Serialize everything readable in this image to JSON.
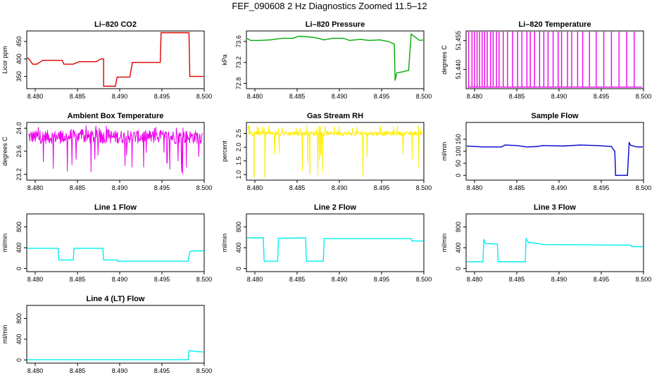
{
  "main_title": "FEF_090608  2 Hz Diagnostics Zoomed 11.5–12",
  "chart_data": [
    {
      "type": "line",
      "title": "Li–820 CO2",
      "ylabel": "Licor ppm",
      "color": "#dd0000",
      "xlim": [
        8.479,
        8.5
      ],
      "ylim": [
        315,
        480
      ],
      "x_ticks": [
        "8.480",
        "8.485",
        "8.490",
        "8.495",
        "8.500"
      ],
      "y_ticks": [
        "350",
        "400",
        "450"
      ],
      "series": [
        {
          "x": [
            8.479,
            8.4792,
            8.4797,
            8.4802,
            8.4809,
            8.4832,
            8.4834,
            8.4845,
            8.4852,
            8.4872,
            8.4878,
            8.4881,
            8.4881,
            8.4895,
            8.4897,
            8.4905,
            8.4912,
            8.4915,
            8.4925,
            8.4932,
            8.4934,
            8.4948,
            8.4949,
            8.4982,
            8.4983,
            8.4986,
            8.5
          ],
          "values": [
            402,
            402,
            385,
            385,
            396,
            396,
            385,
            385,
            392,
            392,
            400,
            400,
            322,
            322,
            348,
            348,
            348,
            390,
            390,
            390,
            390,
            390,
            475,
            475,
            350,
            350,
            350
          ]
        }
      ]
    },
    {
      "type": "line",
      "title": "Li–820 Pressure",
      "ylabel": "kPa",
      "color": "#00aa00",
      "xlim": [
        8.479,
        8.5
      ],
      "ylim": [
        72.7,
        73.8
      ],
      "x_ticks": [
        "8.480",
        "8.485",
        "8.490",
        "8.495",
        "8.500"
      ],
      "y_ticks": [
        "72.8",
        "73.2",
        "73.6"
      ],
      "series": [
        {
          "x": [
            8.479,
            8.4795,
            8.4805,
            8.4818,
            8.4832,
            8.4845,
            8.4852,
            8.4868,
            8.4875,
            8.4882,
            8.4892,
            8.4905,
            8.4912,
            8.4925,
            8.4935,
            8.4948,
            8.4958,
            8.4965,
            8.4966,
            8.4968,
            8.4975,
            8.4982,
            8.4985,
            8.4995,
            8.5
          ],
          "values": [
            73.66,
            73.62,
            73.62,
            73.63,
            73.66,
            73.66,
            73.7,
            73.68,
            73.66,
            73.63,
            73.66,
            73.66,
            73.62,
            73.64,
            73.62,
            73.63,
            73.6,
            73.55,
            72.86,
            73.0,
            73.02,
            73.05,
            73.74,
            73.62,
            73.63
          ]
        }
      ]
    },
    {
      "type": "line",
      "title": "Li–820 Temperature",
      "ylabel": "degrees C",
      "color": "#ee00ee",
      "xlim": [
        8.479,
        8.5
      ],
      "ylim": [
        51.43,
        51.46
      ],
      "x_ticks": [
        "8.480",
        "8.485",
        "8.490",
        "8.495",
        "8.500"
      ],
      "y_ticks": [
        "51.440",
        "51.455"
      ],
      "baseline": 51.4308,
      "spike_top": 51.4612,
      "spikes": [
        8.4793,
        8.4797,
        8.48,
        8.4803,
        8.4806,
        8.4809,
        8.4812,
        8.4815,
        8.4819,
        8.4822,
        8.4826,
        8.4829,
        8.4834,
        8.4839,
        8.4845,
        8.4851,
        8.4856,
        8.4862,
        8.4866,
        8.4871,
        8.4877,
        8.4882,
        8.4887,
        8.4893,
        8.4899,
        8.4903,
        8.491,
        8.4915,
        8.4922,
        8.4928,
        8.4936,
        8.4944,
        8.4953,
        8.4962,
        8.4971,
        8.498,
        8.4989
      ]
    },
    {
      "type": "line",
      "title": "Ambient Box Temperature",
      "ylabel": "degrees C",
      "color": "#ee00ee",
      "xlim": [
        8.479,
        8.5
      ],
      "ylim": [
        23.1,
        24.1
      ],
      "x_ticks": [
        "8.480",
        "8.485",
        "8.490",
        "8.495",
        "8.500"
      ],
      "y_ticks": [
        "23.2",
        "23.6",
        "24.0"
      ],
      "noise": {
        "center": 23.85,
        "amplitude": 0.12,
        "spike_low": 23.2,
        "spike_high": 24.05
      }
    },
    {
      "type": "line",
      "title": "Gas Stream RH",
      "ylabel": "percent",
      "color": "#ffee00",
      "xlim": [
        8.479,
        8.5
      ],
      "ylim": [
        0.8,
        2.9
      ],
      "x_ticks": [
        "8.480",
        "8.485",
        "8.490",
        "8.495",
        "8.500"
      ],
      "y_ticks": [
        "1.0",
        "1.5",
        "2.0",
        "2.5"
      ],
      "noise": {
        "center": 2.5,
        "amplitude": 0.08,
        "spike_low": 0.9,
        "spike_high": 2.8
      },
      "dips": [
        {
          "x": 8.4799,
          "value": 0.9
        },
        {
          "x": 8.4812,
          "value": 0.9
        },
        {
          "x": 8.4865,
          "value": 1.0
        },
        {
          "x": 8.4878,
          "value": 1.7
        }
      ]
    },
    {
      "type": "line",
      "title": "Sample Flow",
      "ylabel": "ml/min",
      "color": "#0000cc",
      "xlim": [
        8.479,
        8.5
      ],
      "ylim": [
        -20,
        220
      ],
      "x_ticks": [
        "8.480",
        "8.485",
        "8.490",
        "8.495",
        "8.500"
      ],
      "y_ticks": [
        "0",
        "50",
        "100",
        "150"
      ],
      "series": [
        {
          "x": [
            8.479,
            8.481,
            8.4832,
            8.4836,
            8.485,
            8.4862,
            8.4875,
            8.488,
            8.4905,
            8.4925,
            8.4945,
            8.4962,
            8.4966,
            8.4967,
            8.4978,
            8.4981,
            8.4983,
            8.4985,
            8.4992,
            8.5
          ],
          "values": [
            122,
            118,
            118,
            126,
            124,
            118,
            120,
            124,
            122,
            126,
            124,
            120,
            100,
            0,
            0,
            0,
            135,
            125,
            118,
            118
          ]
        }
      ]
    },
    {
      "type": "line",
      "title": "Line 1 Flow",
      "ylabel": "ml/min",
      "color": "#00eeee",
      "xlim": [
        8.479,
        8.5
      ],
      "ylim": [
        -60,
        1050
      ],
      "x_ticks": [
        "8.480",
        "8.485",
        "8.490",
        "8.495",
        "8.500"
      ],
      "y_ticks": [
        "0",
        "400",
        "800"
      ],
      "series": [
        {
          "x": [
            8.479,
            8.4827,
            8.4828,
            8.4845,
            8.4846,
            8.488,
            8.4881,
            8.4897,
            8.4898,
            8.4981,
            8.4983,
            8.4985,
            8.5
          ],
          "values": [
            390,
            390,
            165,
            165,
            390,
            390,
            165,
            165,
            140,
            140,
            320,
            340,
            340
          ]
        }
      ]
    },
    {
      "type": "line",
      "title": "Line 2 Flow",
      "ylabel": "ml/min",
      "color": "#00eeee",
      "xlim": [
        8.479,
        8.5
      ],
      "ylim": [
        -60,
        1050
      ],
      "x_ticks": [
        "8.480",
        "8.485",
        "8.490",
        "8.495",
        "8.500"
      ],
      "y_ticks": [
        "0",
        "400",
        "800"
      ],
      "series": [
        {
          "x": [
            8.479,
            8.481,
            8.4811,
            8.4827,
            8.4828,
            8.486,
            8.4861,
            8.4881,
            8.4882,
            8.4985,
            8.4986,
            8.5
          ],
          "values": [
            590,
            590,
            140,
            140,
            580,
            590,
            140,
            140,
            575,
            575,
            530,
            530
          ]
        }
      ]
    },
    {
      "type": "line",
      "title": "Line 3 Flow",
      "ylabel": "ml/min",
      "color": "#00eeee",
      "xlim": [
        8.479,
        8.5
      ],
      "ylim": [
        -60,
        1050
      ],
      "x_ticks": [
        "8.480",
        "8.485",
        "8.490",
        "8.495",
        "8.500"
      ],
      "y_ticks": [
        "0",
        "400",
        "800"
      ],
      "series": [
        {
          "x": [
            8.479,
            8.481,
            8.4811,
            8.4813,
            8.4827,
            8.4828,
            8.486,
            8.4861,
            8.4864,
            8.4875,
            8.4882,
            8.4985,
            8.4986,
            8.5
          ],
          "values": [
            130,
            130,
            560,
            480,
            470,
            130,
            130,
            575,
            500,
            480,
            460,
            450,
            420,
            420
          ]
        }
      ]
    },
    {
      "type": "line",
      "title": "Line 4 (LT) Flow",
      "ylabel": "ml/min",
      "color": "#00eeee",
      "xlim": [
        8.479,
        8.5
      ],
      "ylim": [
        -60,
        1050
      ],
      "x_ticks": [
        "8.480",
        "8.485",
        "8.490",
        "8.495",
        "8.500"
      ],
      "y_ticks": [
        "0",
        "400",
        "800"
      ],
      "series": [
        {
          "x": [
            8.479,
            8.4981,
            8.4982,
            8.4984,
            8.4992,
            8.5
          ],
          "values": [
            5,
            5,
            180,
            175,
            160,
            155
          ]
        }
      ]
    }
  ]
}
